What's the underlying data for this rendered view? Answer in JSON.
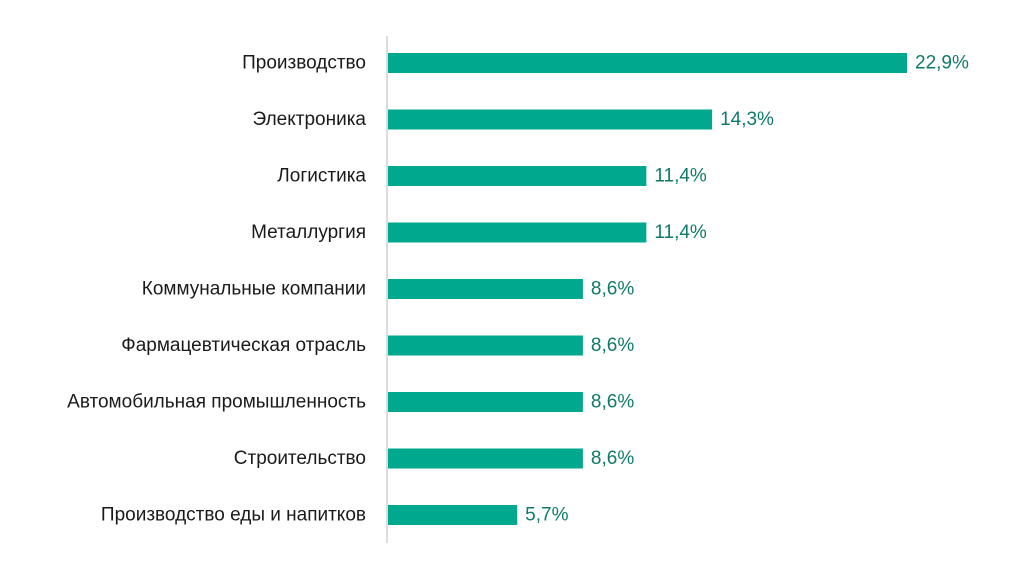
{
  "chart_data": {
    "type": "bar",
    "orientation": "horizontal",
    "categories": [
      "Производство",
      "Электроника",
      "Логистика",
      "Металлургия",
      "Коммунальные компании",
      "Фармацевтическая отрасль",
      "Автомобильная промышленность",
      "Строительство",
      "Производство еды и напитков"
    ],
    "values": [
      22.9,
      14.3,
      11.4,
      11.4,
      8.6,
      8.6,
      8.6,
      8.6,
      5.7
    ],
    "value_labels": [
      "22,9%",
      "14,3%",
      "11,4%",
      "11,4%",
      "8,6%",
      "8,6%",
      "8,6%",
      "8,6%",
      "5,7%"
    ],
    "unit": "%",
    "title": "",
    "xlabel": "",
    "ylabel": "",
    "xlim": [
      0,
      22.9
    ],
    "grid": false,
    "legend": false,
    "colors": {
      "bar": "#00a88e",
      "value_text": "#0f7a6a",
      "axis": "#d0d0d0",
      "category_text": "#1a1a1a"
    }
  }
}
